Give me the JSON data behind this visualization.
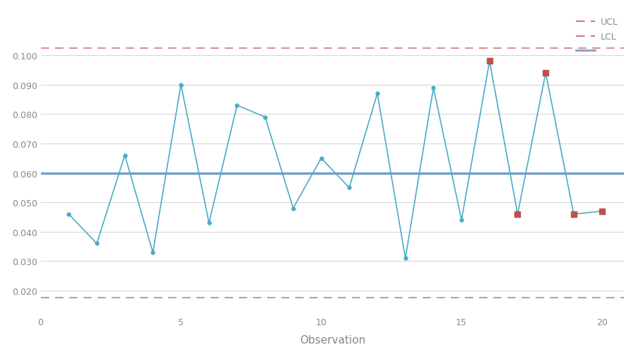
{
  "x": [
    1,
    2,
    3,
    4,
    5,
    6,
    7,
    8,
    9,
    10,
    11,
    12,
    13,
    14,
    15,
    16,
    17,
    18,
    19,
    20
  ],
  "y": [
    0.046,
    0.036,
    0.066,
    0.033,
    0.09,
    0.043,
    0.083,
    0.079,
    0.048,
    0.065,
    0.055,
    0.087,
    0.031,
    0.089,
    0.044,
    0.098,
    0.046,
    0.094,
    0.046,
    0.047
  ],
  "red_square_indices": [
    15,
    16,
    17,
    18,
    19
  ],
  "ucl": 0.1025,
  "lcl": 0.0175,
  "mean": 0.06,
  "ucl_color": "#c0504d",
  "lcl_color": "#c0504d",
  "mean_color": "#4f81bd",
  "line_color": "#4bacc6",
  "marker_color": "#4bacc6",
  "red_marker_color": "#c0504d",
  "xlabel": "Observation",
  "xlim": [
    0,
    20.8
  ],
  "ylim": [
    0.012,
    0.115
  ],
  "yticks": [
    0.02,
    0.03,
    0.04,
    0.05,
    0.06,
    0.07,
    0.08,
    0.09,
    0.1
  ],
  "xticks": [
    0,
    5,
    10,
    15,
    20
  ],
  "legend_ucl": "UCL",
  "legend_lcl": "LCL",
  "legend_mean": "",
  "background_color": "#ffffff",
  "grid_color": "#d8d8d8",
  "tick_color": "#888888",
  "label_fontsize": 11,
  "tick_fontsize": 9,
  "figsize": [
    9.0,
    5.06
  ],
  "dpi": 100
}
